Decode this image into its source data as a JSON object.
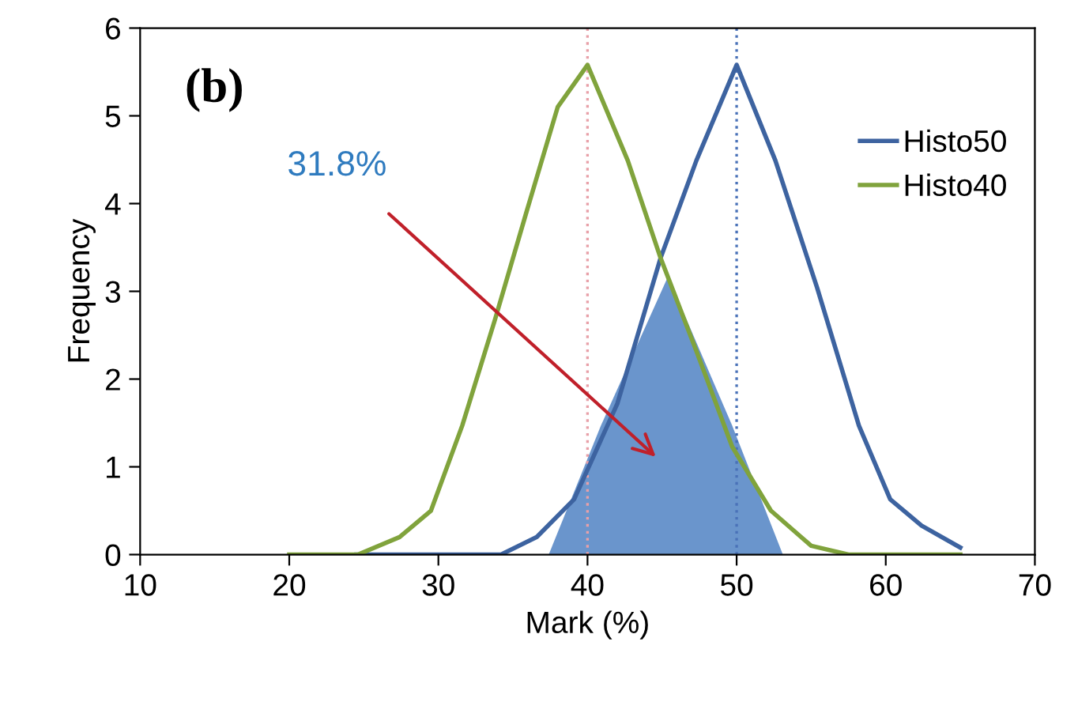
{
  "chart_data": {
    "type": "line",
    "xlabel": "Mark (%)",
    "ylabel": "Frequency",
    "xlim": [
      10,
      70
    ],
    "ylim": [
      0,
      6
    ],
    "xticks": [
      10,
      20,
      30,
      40,
      50,
      60,
      70
    ],
    "yticks": [
      0,
      1,
      2,
      3,
      4,
      5,
      6
    ],
    "grid": false,
    "legend": "top right",
    "marker": "none",
    "line_style": "solid",
    "series": [
      {
        "type": "area",
        "color": "#6a95cc",
        "x": [
          37.4,
          40.9,
          45.4,
          49.7,
          53.1
        ],
        "values": [
          0,
          1.47,
          3.17,
          1.47,
          0
        ]
      },
      {
        "name": "Histo50",
        "color": "#3d63a0",
        "x": [
          24.5,
          34.2,
          36.6,
          39.1,
          42,
          44.9,
          47.3,
          50,
          52.6,
          55.4,
          58.2,
          60.3,
          62.4,
          65
        ],
        "values": [
          0,
          0,
          0.2,
          0.63,
          1.72,
          3.38,
          4.49,
          5.58,
          4.49,
          3.04,
          1.47,
          0.63,
          0.33,
          0.08
        ]
      },
      {
        "name": "Histo40",
        "color": "#80a33c",
        "x": [
          20,
          24.6,
          27.4,
          29.5,
          31.6,
          33.8,
          35.9,
          38,
          40,
          42.7,
          44.9,
          47.3,
          49.7,
          52.3,
          55,
          57.5,
          65
        ],
        "values": [
          0,
          0,
          0.2,
          0.5,
          1.47,
          2.68,
          3.9,
          5.1,
          5.58,
          4.49,
          3.38,
          2.32,
          1.23,
          0.5,
          0.1,
          0,
          0
        ]
      }
    ],
    "ref_lines": [
      {
        "axis": "x",
        "value": 40,
        "color": "#e8a0a8",
        "line_style": "dotted"
      },
      {
        "axis": "x",
        "value": 50,
        "color": "#4a72b8",
        "line_style": "dotted"
      }
    ],
    "annotations": [
      "(b)",
      "31.8%"
    ]
  }
}
